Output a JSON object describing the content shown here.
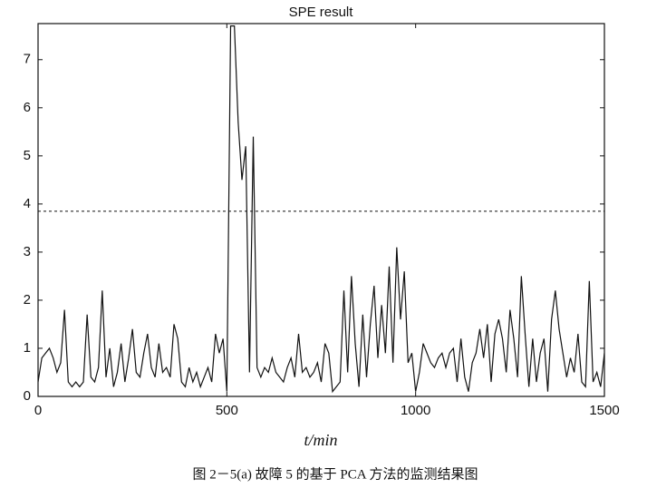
{
  "chart_data": {
    "type": "line",
    "title": "SPE result",
    "x_label": "t/min",
    "caption": "图 2－5(a)  故障 5 的基于 PCA 方法的监测结果图",
    "x": [
      0,
      10,
      20,
      30,
      40,
      50,
      60,
      70,
      80,
      90,
      100,
      110,
      120,
      130,
      140,
      150,
      160,
      170,
      180,
      190,
      200,
      210,
      220,
      230,
      240,
      250,
      260,
      270,
      280,
      290,
      300,
      310,
      320,
      330,
      340,
      350,
      360,
      370,
      380,
      390,
      400,
      410,
      420,
      430,
      440,
      450,
      460,
      470,
      480,
      490,
      500,
      510,
      520,
      530,
      540,
      550,
      560,
      570,
      580,
      590,
      600,
      610,
      620,
      630,
      640,
      650,
      660,
      670,
      680,
      690,
      700,
      710,
      720,
      730,
      740,
      750,
      760,
      770,
      780,
      790,
      800,
      810,
      820,
      830,
      840,
      850,
      860,
      870,
      880,
      890,
      900,
      910,
      920,
      930,
      940,
      950,
      960,
      970,
      980,
      990,
      1000,
      1010,
      1020,
      1030,
      1040,
      1050,
      1060,
      1070,
      1080,
      1090,
      1100,
      1110,
      1120,
      1130,
      1140,
      1150,
      1160,
      1170,
      1180,
      1190,
      1200,
      1210,
      1220,
      1230,
      1240,
      1250,
      1260,
      1270,
      1280,
      1290,
      1300,
      1310,
      1320,
      1330,
      1340,
      1350,
      1360,
      1370,
      1380,
      1390,
      1400,
      1410,
      1420,
      1430,
      1440,
      1450,
      1460,
      1470,
      1480,
      1490,
      1500
    ],
    "series": [
      {
        "color": "#111111",
        "values": [
          0.3,
          0.8,
          0.9,
          1.0,
          0.8,
          0.5,
          0.7,
          1.8,
          0.3,
          0.2,
          0.3,
          0.2,
          0.3,
          1.7,
          0.4,
          0.3,
          0.6,
          2.2,
          0.4,
          1.0,
          0.2,
          0.5,
          1.1,
          0.3,
          0.8,
          1.4,
          0.5,
          0.4,
          0.9,
          1.3,
          0.6,
          0.4,
          1.1,
          0.5,
          0.6,
          0.4,
          1.5,
          1.2,
          0.3,
          0.2,
          0.6,
          0.3,
          0.5,
          0.2,
          0.4,
          0.6,
          0.3,
          1.3,
          0.9,
          1.2,
          0.1,
          7.7,
          7.7,
          5.7,
          4.5,
          5.2,
          0.5,
          5.4,
          0.6,
          0.4,
          0.6,
          0.5,
          0.8,
          0.5,
          0.4,
          0.3,
          0.6,
          0.8,
          0.4,
          1.3,
          0.5,
          0.6,
          0.4,
          0.5,
          0.7,
          0.3,
          1.1,
          0.9,
          0.1,
          0.2,
          0.3,
          2.2,
          0.5,
          2.5,
          1.1,
          0.2,
          1.7,
          0.4,
          1.5,
          2.3,
          0.8,
          1.9,
          0.9,
          2.7,
          0.7,
          3.1,
          1.6,
          2.6,
          0.7,
          0.9,
          0.1,
          0.5,
          1.1,
          0.9,
          0.7,
          0.6,
          0.8,
          0.9,
          0.6,
          0.9,
          1.0,
          0.3,
          1.2,
          0.4,
          0.1,
          0.7,
          0.9,
          1.4,
          0.8,
          1.5,
          0.3,
          1.3,
          1.6,
          1.2,
          0.5,
          1.8,
          1.2,
          0.4,
          2.5,
          1.3,
          0.2,
          1.2,
          0.3,
          0.9,
          1.2,
          0.1,
          1.6,
          2.2,
          1.4,
          0.9,
          0.4,
          0.8,
          0.5,
          1.3,
          0.3,
          0.2,
          2.4,
          0.3,
          0.5,
          0.2,
          0.9
        ]
      }
    ],
    "threshold": 3.85,
    "xlim": [
      0,
      1500
    ],
    "xticks": [
      0,
      500,
      1000,
      1500
    ],
    "ylim": [
      0,
      7.75
    ],
    "yticks": [
      0,
      1,
      2,
      3,
      4,
      5,
      6,
      7
    ]
  }
}
